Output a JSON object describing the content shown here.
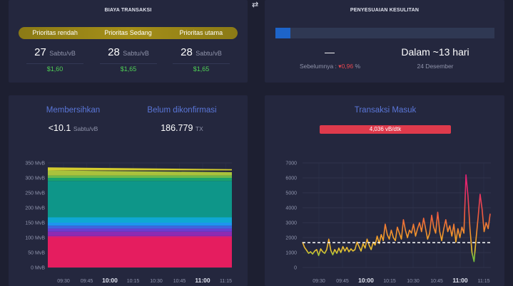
{
  "fees": {
    "title": "BIAYA TRANSAKSI",
    "priorities": [
      "Prioritas rendah",
      "Prioritas Sedang",
      "Prioritas utama"
    ],
    "items": [
      {
        "value": "27",
        "unit": "Sabtu/vB",
        "usd": "$1,60"
      },
      {
        "value": "28",
        "unit": "Sabtu/vB",
        "usd": "$1,65"
      },
      {
        "value": "28",
        "unit": "Sabtu/vB",
        "usd": "$1,65"
      }
    ]
  },
  "difficulty": {
    "title": "PENYESUAIAN KESULITAN",
    "progress": 0.07,
    "change": "—",
    "previous_label": "Sebelumnya :",
    "previous_value": "▾0,96",
    "previous_unit": "%",
    "remaining": "Dalam ~13 hari",
    "date": "24 Desember"
  },
  "mempool": {
    "clear_label": "Membersihkan",
    "clear_value": "<10.1",
    "clear_unit": "Sabtu/vB",
    "unconfirmed_label": "Belum dikonfirmasi",
    "unconfirmed_value": "186.779",
    "unconfirmed_unit": "TX"
  },
  "incoming": {
    "title": "Transaksi Masuk",
    "rate": "4,036 vB/dtk"
  },
  "colors": {
    "accent": "#5a76d8",
    "green": "#4fd155",
    "red": "#df3a4c"
  },
  "chart_data": [
    {
      "type": "area",
      "x_ticks": [
        "09:30",
        "09:45",
        "10:00",
        "10:15",
        "10:30",
        "10:45",
        "11:00",
        "11:15"
      ],
      "y_ticks": [
        "0 MvB",
        "50 MvB",
        "100 MvB",
        "150 MvB",
        "200 MvB",
        "250 MvB",
        "300 MvB",
        "350 MvB"
      ],
      "ylim": [
        0,
        350
      ],
      "layers": [
        {
          "color": "#e51d5f",
          "from": 0,
          "to": 100
        },
        {
          "color": "#d41f7a",
          "from": 100,
          "to": 105
        },
        {
          "color": "#8e2bb3",
          "from": 105,
          "to": 120
        },
        {
          "color": "#6a3ed1",
          "from": 120,
          "to": 130
        },
        {
          "color": "#4164e0",
          "from": 130,
          "to": 140
        },
        {
          "color": "#1e94ee",
          "from": 140,
          "to": 150
        },
        {
          "color": "#0fa8d2",
          "from": 150,
          "to": 168
        },
        {
          "color": "#0e9689",
          "from": 168,
          "to": 290
        },
        {
          "color": "#1aa26c",
          "from": 290,
          "to": 300
        },
        {
          "color": "#6cb84b",
          "from": 300,
          "to": 308
        },
        {
          "color": "#aac23c",
          "from": 308,
          "to": 325
        },
        {
          "color": "#d4cc2e",
          "from": 325,
          "to": 335
        }
      ]
    },
    {
      "type": "line",
      "title": "Transaksi Masuk",
      "x_ticks": [
        "09:30",
        "09:45",
        "10:00",
        "10:15",
        "10:30",
        "10:45",
        "11:00",
        "11:15"
      ],
      "y_ticks": [
        "0",
        "1000",
        "2000",
        "3000",
        "4000",
        "5000",
        "6000",
        "7000"
      ],
      "ylim": [
        0,
        7000
      ],
      "threshold": 1667,
      "values": [
        1700,
        1350,
        1150,
        950,
        1050,
        900,
        1100,
        1200,
        800,
        1250,
        1050,
        950,
        1200,
        1900,
        1150,
        850,
        1200,
        950,
        1300,
        1000,
        1400,
        1100,
        1350,
        1050,
        1250,
        1100,
        1200,
        1700,
        1400,
        1100,
        1600,
        1300,
        1900,
        1500,
        1200,
        1700,
        1500,
        2100,
        1600,
        2200,
        1800,
        2900,
        2200,
        1900,
        2500,
        2000,
        1800,
        2700,
        2300,
        1900,
        3200,
        2500,
        2000,
        2500,
        2300,
        2900,
        2100,
        2600,
        3000,
        2400,
        3300,
        2600,
        1900,
        2300,
        3500,
        2700,
        2300,
        3700,
        2400,
        1800,
        2600,
        3200,
        2400,
        2800,
        2100,
        2900,
        1700,
        2600,
        2000,
        2700,
        2300,
        6200,
        4800,
        2600,
        1000,
        400,
        1900,
        3300,
        4900,
        3900,
        2400,
        3000,
        2600,
        3600
      ]
    }
  ]
}
